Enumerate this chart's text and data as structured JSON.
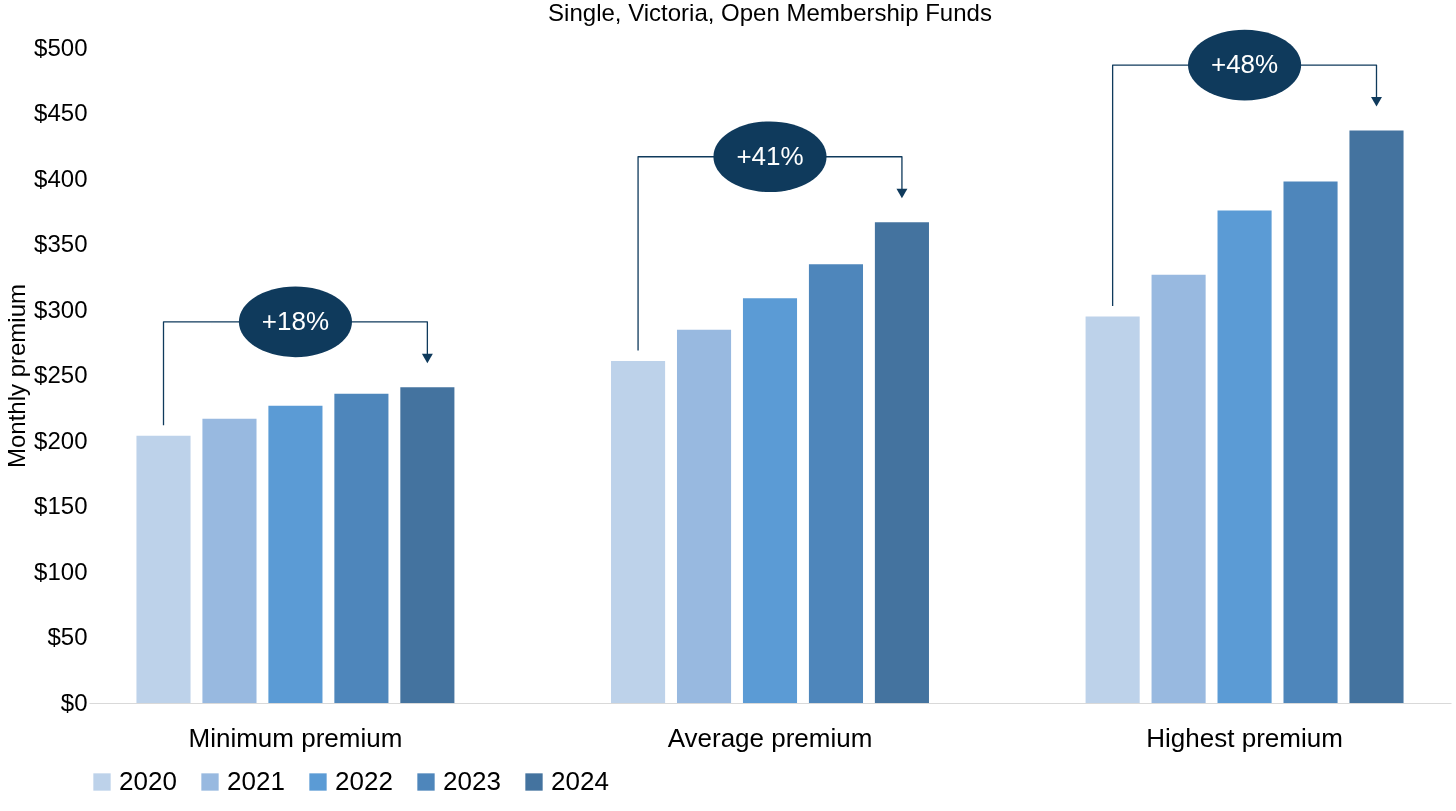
{
  "chart_data": {
    "type": "bar",
    "title": "Single, Victoria, Open Membership Funds",
    "ylabel": "Monthly premium",
    "categories": [
      "Minimum premium",
      "Average premium",
      "Highest premium"
    ],
    "series": [
      {
        "name": "2020",
        "color": "#bdd2ea",
        "values": [
          204,
          261,
          295
        ]
      },
      {
        "name": "2021",
        "color": "#98b9e0",
        "values": [
          217,
          285,
          327
        ]
      },
      {
        "name": "2022",
        "color": "#5b9bd5",
        "values": [
          227,
          309,
          376
        ]
      },
      {
        "name": "2023",
        "color": "#4e86bb",
        "values": [
          236,
          335,
          398
        ]
      },
      {
        "name": "2024",
        "color": "#44739f",
        "values": [
          241,
          367,
          437
        ]
      }
    ],
    "ylim": [
      0,
      500
    ],
    "yticks": [
      {
        "value": 0,
        "label": "$0"
      },
      {
        "value": 50,
        "label": "$50"
      },
      {
        "value": 100,
        "label": "$100"
      },
      {
        "value": 150,
        "label": "$150"
      },
      {
        "value": 200,
        "label": "$200"
      },
      {
        "value": 250,
        "label": "$250"
      },
      {
        "value": 300,
        "label": "$300"
      },
      {
        "value": 350,
        "label": "$350"
      },
      {
        "value": 400,
        "label": "$400"
      },
      {
        "value": 450,
        "label": "$450"
      },
      {
        "value": 500,
        "label": "$500"
      }
    ],
    "annotations": [
      "+18%",
      "+41%",
      "+48%"
    ],
    "grid": false,
    "legend": "bottom"
  }
}
